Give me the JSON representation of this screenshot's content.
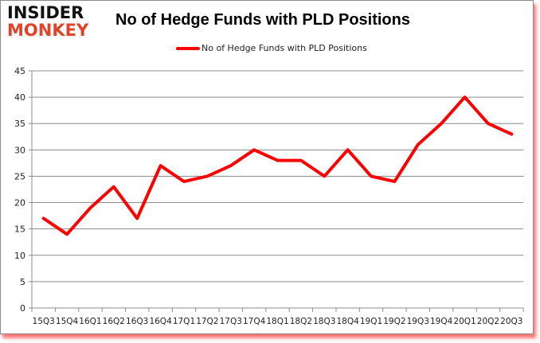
{
  "brand": {
    "line1": "INSIDER",
    "line2": "MONKEY",
    "accent": "#e0422a"
  },
  "header": {
    "title": "No of Hedge Funds with PLD Positions"
  },
  "legend": {
    "label": "No of Hedge Funds with PLD Positions",
    "color": "#ff0000"
  },
  "chart_data": {
    "type": "line",
    "title": "No of Hedge Funds with PLD Positions",
    "xlabel": "",
    "ylabel": "",
    "ylim": [
      0,
      45
    ],
    "yticks": [
      0,
      5,
      10,
      15,
      20,
      25,
      30,
      35,
      40,
      45
    ],
    "grid": true,
    "legend_position": "top",
    "categories": [
      "15Q3",
      "15Q4",
      "16Q1",
      "16Q2",
      "16Q3",
      "16Q4",
      "17Q1",
      "17Q2",
      "17Q3",
      "17Q4",
      "18Q1",
      "18Q2",
      "18Q3",
      "18Q4",
      "19Q1",
      "19Q2",
      "19Q3",
      "19Q4",
      "20Q1",
      "20Q2",
      "20Q3"
    ],
    "series": [
      {
        "name": "No of Hedge Funds with PLD Positions",
        "color": "#ff0000",
        "values": [
          17,
          14,
          19,
          23,
          17,
          27,
          24,
          25,
          27,
          30,
          28,
          28,
          25,
          30,
          25,
          24,
          31,
          35,
          40,
          35,
          33
        ]
      }
    ]
  }
}
